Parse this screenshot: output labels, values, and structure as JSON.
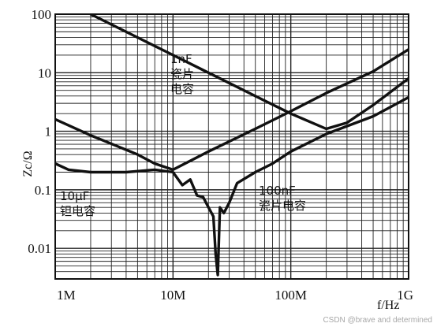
{
  "chart_data": {
    "type": "line",
    "xscale": "log",
    "yscale": "log",
    "xlim": [
      1000000,
      1000000000
    ],
    "ylim": [
      0.003,
      100
    ],
    "grid": true,
    "x_ticks": [
      {
        "value": 1000000,
        "label": "1M"
      },
      {
        "value": 10000000,
        "label": "10M"
      },
      {
        "value": 100000000,
        "label": "100M"
      },
      {
        "value": 1000000000,
        "label": "1G"
      }
    ],
    "y_ticks": [
      {
        "value": 100,
        "label": "100"
      },
      {
        "value": 10,
        "label": "10"
      },
      {
        "value": 1,
        "label": "1"
      },
      {
        "value": 0.1,
        "label": "0.1"
      },
      {
        "value": 0.01,
        "label": "0.01"
      }
    ],
    "xlabel": "f/Hz",
    "ylabel": "Zc/Ω",
    "series": [
      {
        "name": "1nF 瓷片电容",
        "x": [
          2000000,
          10000000,
          50000000,
          100000000,
          200000000,
          300000000,
          500000000,
          1000000000
        ],
        "y": [
          100,
          20,
          4.0,
          2.0,
          1.1,
          1.4,
          2.8,
          8
        ]
      },
      {
        "name": "10μF 钽电容",
        "x": [
          1000000,
          2000000,
          5000000,
          7000000,
          10000000,
          20000000,
          50000000,
          100000000,
          200000000,
          500000000,
          1000000000
        ],
        "y": [
          1.6,
          0.85,
          0.4,
          0.28,
          0.22,
          0.45,
          1.1,
          2.2,
          4.5,
          10.5,
          25
        ]
      },
      {
        "name": "100nF 瓷片电容",
        "x": [
          1000000,
          1300000,
          2000000,
          4000000,
          7000000,
          10000000,
          12000000,
          14000000,
          16000000,
          18000000,
          20000000,
          22000000,
          23000000,
          24000000,
          25000000,
          27000000,
          30000000,
          35000000,
          50000000,
          70000000,
          100000000,
          200000000,
          500000000,
          1000000000
        ],
        "y": [
          0.28,
          0.22,
          0.2,
          0.2,
          0.22,
          0.2,
          0.12,
          0.15,
          0.08,
          0.075,
          0.05,
          0.035,
          0.008,
          0.0035,
          0.05,
          0.04,
          0.06,
          0.13,
          0.2,
          0.28,
          0.45,
          0.9,
          1.8,
          3.8
        ]
      }
    ],
    "annotations": [
      {
        "text": "1nF",
        "series": 0
      },
      {
        "text": "瓷片",
        "series": 0
      },
      {
        "text": "电容",
        "series": 0
      },
      {
        "text": "10μF",
        "series": 1
      },
      {
        "text": "钽电容",
        "series": 1
      },
      {
        "text": "100nF",
        "series": 2
      },
      {
        "text": "瓷片电容",
        "series": 2
      }
    ]
  },
  "watermark": "CSDN @brave and determined"
}
